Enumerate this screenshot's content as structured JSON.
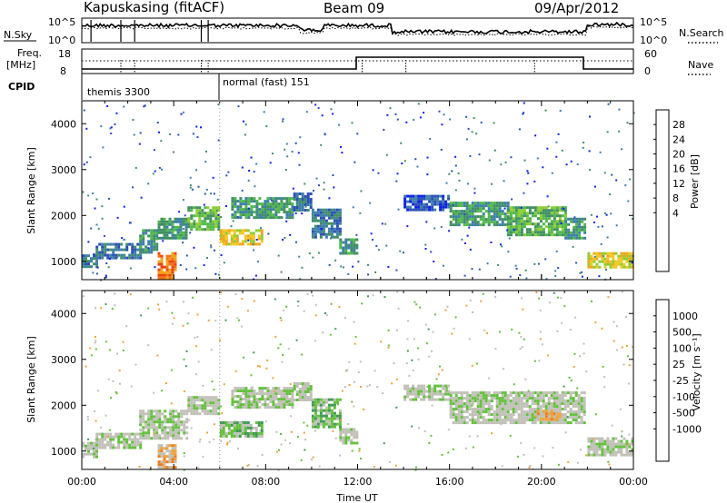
{
  "header": {
    "station": "Kapuskasing (fitACF)",
    "beam": "Beam 09",
    "date": "09/Apr/2012"
  },
  "strips": {
    "nsky_label": "N.Sky",
    "nsky_ticks": [
      "10^5",
      "10^0"
    ],
    "nsearch_label": "N.Search",
    "nsearch_ticks": [
      "10^5",
      "10^0"
    ],
    "freq_label_1": "Freq.",
    "freq_label_2": "[MHz]",
    "freq_ticks": [
      "18",
      "8"
    ],
    "nave_label": "Nave",
    "nave_ticks": [
      "60",
      "0"
    ],
    "cpid_label": "CPID",
    "cpid_segments": [
      {
        "label": "themis 3300",
        "start_hour": 0,
        "end_hour": 6
      },
      {
        "label": "normal (fast) 151",
        "start_hour": 6,
        "end_hour": 24
      }
    ]
  },
  "chart_data": [
    {
      "type": "heatmap",
      "name": "power",
      "ylabel": "Slant Range [km]",
      "xlabel": "",
      "xlim": [
        0,
        24
      ],
      "ylim": [
        600,
        4500
      ],
      "yticks": [
        "1000",
        "2000",
        "3000",
        "4000"
      ],
      "colorbar": {
        "label": "Power [dB]",
        "ticks": [
          "28",
          "24",
          "20",
          "16",
          "12",
          "8",
          "4"
        ],
        "colors": [
          "#0d20e8",
          "#2a4fb5",
          "#3d7fa8",
          "#3f8f63",
          "#4fb84a",
          "#8ccc2e",
          "#f0c81e",
          "#f4a316",
          "#f07514",
          "#ec4110",
          "#e51e0e"
        ]
      },
      "regions": [
        {
          "hours": [
            0.0,
            0.6
          ],
          "range_km": [
            900,
            1150
          ],
          "level": 2
        },
        {
          "hours": [
            0.6,
            2.5
          ],
          "range_km": [
            1050,
            1400
          ],
          "level": 2
        },
        {
          "hours": [
            2.5,
            3.3
          ],
          "range_km": [
            1200,
            1700
          ],
          "level": 3
        },
        {
          "hours": [
            3.3,
            4.6
          ],
          "range_km": [
            1500,
            1950
          ],
          "level": 3
        },
        {
          "hours": [
            3.3,
            4.1
          ],
          "range_km": [
            650,
            1200
          ],
          "level": 8
        },
        {
          "hours": [
            4.6,
            6.0
          ],
          "range_km": [
            1700,
            2200
          ],
          "level": 4
        },
        {
          "hours": [
            6.0,
            7.8
          ],
          "range_km": [
            1350,
            1700
          ],
          "level": 6
        },
        {
          "hours": [
            6.5,
            9.2
          ],
          "range_km": [
            1950,
            2400
          ],
          "level": 3
        },
        {
          "hours": [
            9.2,
            10.0
          ],
          "range_km": [
            2100,
            2500
          ],
          "level": 2
        },
        {
          "hours": [
            10.0,
            11.2
          ],
          "range_km": [
            1500,
            2150
          ],
          "level": 2
        },
        {
          "hours": [
            11.2,
            12.0
          ],
          "range_km": [
            1150,
            1500
          ],
          "level": 3
        },
        {
          "hours": [
            14.0,
            16.0
          ],
          "range_km": [
            2100,
            2450
          ],
          "level": 1
        },
        {
          "hours": [
            16.0,
            18.5
          ],
          "range_km": [
            1800,
            2300
          ],
          "level": 3
        },
        {
          "hours": [
            18.5,
            21.0
          ],
          "range_km": [
            1600,
            2200
          ],
          "level": 4
        },
        {
          "hours": [
            21.0,
            21.9
          ],
          "range_km": [
            1500,
            1950
          ],
          "level": 3
        },
        {
          "hours": [
            22.0,
            24.0
          ],
          "range_km": [
            900,
            1200
          ],
          "level": 6
        }
      ]
    },
    {
      "type": "heatmap",
      "name": "velocity",
      "ylabel": "Slant Range [km]",
      "xlabel": "Time UT",
      "xlim": [
        0,
        24
      ],
      "ylim": [
        600,
        4500
      ],
      "yticks": [
        "1000",
        "2000",
        "3000",
        "4000"
      ],
      "xticks": [
        "00:00",
        "04:00",
        "08:00",
        "12:00",
        "16:00",
        "20:00",
        "00:00"
      ],
      "colorbar": {
        "label": "Velocity [m s⁻¹]",
        "ticks": [
          "1000",
          "500",
          "100",
          "25",
          "-25",
          "-100",
          "-500",
          "-1000"
        ],
        "colors": [
          "#1a2fd0",
          "#2e6ba8",
          "#3f9a55",
          "#63c03b",
          "#c0c0b8",
          "#c0c0b8",
          "#f0a33a",
          "#f07a1c",
          "#ee3d12",
          "#e51e0e"
        ]
      },
      "regions": [
        {
          "hours": [
            0.0,
            0.6
          ],
          "range_km": [
            900,
            1200
          ],
          "level": 4
        },
        {
          "hours": [
            0.6,
            2.5
          ],
          "range_km": [
            1050,
            1400
          ],
          "level": 4
        },
        {
          "hours": [
            2.5,
            4.6
          ],
          "range_km": [
            1300,
            1900
          ],
          "level": 4
        },
        {
          "hours": [
            3.3,
            4.1
          ],
          "range_km": [
            650,
            1150
          ],
          "level": 6
        },
        {
          "hours": [
            4.6,
            6.0
          ],
          "range_km": [
            1800,
            2200
          ],
          "level": 4
        },
        {
          "hours": [
            6.0,
            7.8
          ],
          "range_km": [
            1350,
            1650
          ],
          "level": 3
        },
        {
          "hours": [
            6.5,
            9.2
          ],
          "range_km": [
            1950,
            2400
          ],
          "level": 4
        },
        {
          "hours": [
            9.2,
            10.0
          ],
          "range_km": [
            2100,
            2500
          ],
          "level": 4
        },
        {
          "hours": [
            10.0,
            11.2
          ],
          "range_km": [
            1500,
            2150
          ],
          "level": 3
        },
        {
          "hours": [
            11.2,
            12.0
          ],
          "range_km": [
            1150,
            1500
          ],
          "level": 4
        },
        {
          "hours": [
            14.0,
            16.0
          ],
          "range_km": [
            2100,
            2450
          ],
          "level": 4
        },
        {
          "hours": [
            16.0,
            21.9
          ],
          "range_km": [
            1600,
            2300
          ],
          "level": 4
        },
        {
          "hours": [
            19.8,
            20.8
          ],
          "range_km": [
            1700,
            1900
          ],
          "level": 6
        },
        {
          "hours": [
            22.0,
            24.0
          ],
          "range_km": [
            900,
            1300
          ],
          "level": 4
        }
      ]
    }
  ]
}
